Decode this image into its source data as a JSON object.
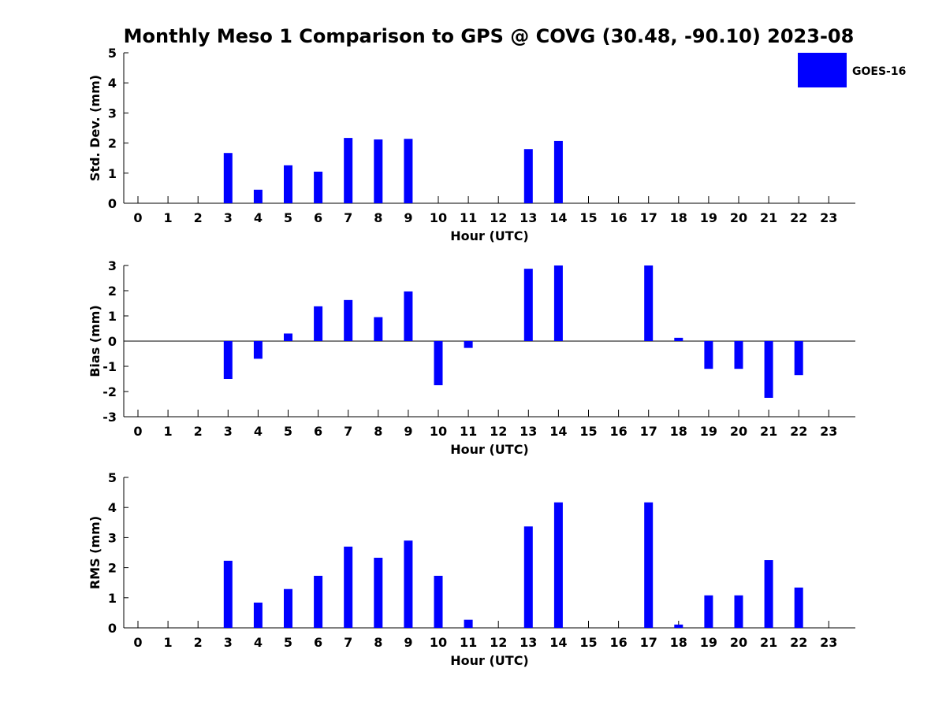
{
  "title": "Monthly Meso 1 Comparison to GPS @ COVG (30.48, -90.10) 2023-08",
  "legend": {
    "label": "GOES-16",
    "color": "#0000ff",
    "placement": "top-right"
  },
  "chart_data": [
    {
      "type": "bar",
      "name": "std-dev",
      "ylabel": "Std. Dev. (mm)",
      "xlabel": "Hour (UTC)",
      "ylim": [
        0,
        5
      ],
      "yticks": [
        "0",
        "1",
        "2",
        "3",
        "4",
        "5"
      ],
      "categories": [
        "0",
        "1",
        "2",
        "3",
        "4",
        "5",
        "6",
        "7",
        "8",
        "9",
        "10",
        "11",
        "12",
        "13",
        "14",
        "15",
        "16",
        "17",
        "18",
        "19",
        "20",
        "21",
        "22",
        "23"
      ],
      "values": [
        null,
        null,
        null,
        1.67,
        0.45,
        1.26,
        1.05,
        2.17,
        2.12,
        2.14,
        null,
        null,
        null,
        1.8,
        2.07,
        null,
        null,
        null,
        null,
        null,
        null,
        null,
        null,
        null
      ],
      "zero_line": false
    },
    {
      "type": "bar",
      "name": "bias",
      "ylabel": "Bias (mm)",
      "xlabel": "Hour (UTC)",
      "ylim": [
        -3,
        3
      ],
      "yticks": [
        "-3",
        "-2",
        "-1",
        "0",
        "1",
        "2",
        "3"
      ],
      "categories": [
        "0",
        "1",
        "2",
        "3",
        "4",
        "5",
        "6",
        "7",
        "8",
        "9",
        "10",
        "11",
        "12",
        "13",
        "14",
        "15",
        "16",
        "17",
        "18",
        "19",
        "20",
        "21",
        "22",
        "23"
      ],
      "values": [
        null,
        null,
        null,
        -1.5,
        -0.7,
        0.3,
        1.38,
        1.63,
        0.95,
        1.97,
        -1.75,
        -0.27,
        null,
        2.87,
        3.0,
        null,
        null,
        3.0,
        0.13,
        -1.1,
        -1.1,
        -2.25,
        -1.35,
        null
      ],
      "zero_line": true
    },
    {
      "type": "bar",
      "name": "rms",
      "ylabel": "RMS (mm)",
      "xlabel": "Hour (UTC)",
      "ylim": [
        0,
        5
      ],
      "yticks": [
        "0",
        "1",
        "2",
        "3",
        "4",
        "5"
      ],
      "categories": [
        "0",
        "1",
        "2",
        "3",
        "4",
        "5",
        "6",
        "7",
        "8",
        "9",
        "10",
        "11",
        "12",
        "13",
        "14",
        "15",
        "16",
        "17",
        "18",
        "19",
        "20",
        "21",
        "22",
        "23"
      ],
      "values": [
        null,
        null,
        null,
        2.23,
        0.84,
        1.29,
        1.73,
        2.7,
        2.33,
        2.9,
        1.73,
        0.27,
        null,
        3.37,
        4.17,
        null,
        null,
        4.17,
        0.11,
        1.08,
        1.08,
        2.25,
        1.34,
        null
      ],
      "zero_line": false
    }
  ]
}
